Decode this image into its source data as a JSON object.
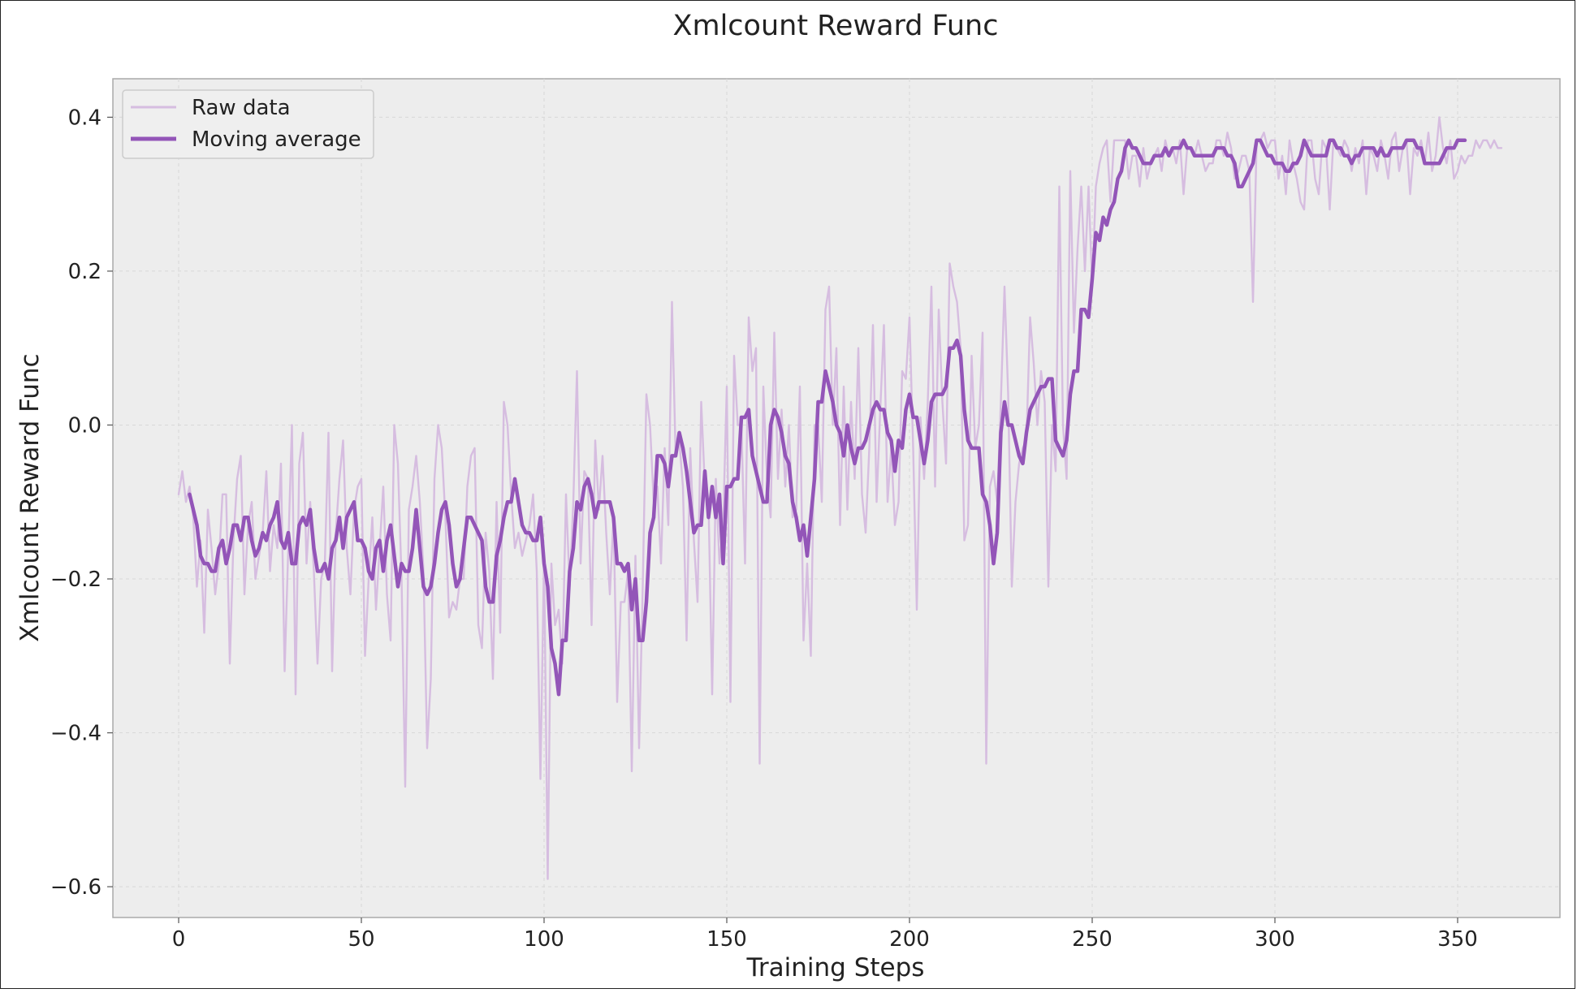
{
  "colors": {
    "background": "#ffffff",
    "plot_background": "#ededed",
    "grid": "#d8d8d8",
    "raw": "#d6bde0",
    "moving_average": "#9355b8",
    "axis": "#aaaaaa",
    "text": "#222222"
  },
  "chart_data": {
    "type": "line",
    "title": "Xmlcount Reward Func",
    "xlabel": "Training Steps",
    "ylabel": "Xmlcount Reward Func",
    "xlim": [
      -18,
      378
    ],
    "ylim": [
      -0.64,
      0.45
    ],
    "xticks": [
      0,
      50,
      100,
      150,
      200,
      250,
      300,
      350
    ],
    "yticks": [
      -0.6,
      -0.4,
      -0.2,
      0.0,
      0.2,
      0.4
    ],
    "ytick_labels": [
      "−0.6",
      "−0.4",
      "−0.2",
      "0.0",
      "0.2",
      "0.4"
    ],
    "grid": true,
    "legend_position": "top-left",
    "series": [
      {
        "name": "Raw data",
        "style": "raw",
        "x_start": 0,
        "values": [
          -0.09,
          -0.06,
          -0.1,
          -0.08,
          -0.12,
          -0.21,
          -0.15,
          -0.27,
          -0.11,
          -0.16,
          -0.22,
          -0.18,
          -0.09,
          -0.09,
          -0.31,
          -0.15,
          -0.07,
          -0.04,
          -0.22,
          -0.13,
          -0.1,
          -0.2,
          -0.17,
          -0.14,
          -0.06,
          -0.19,
          -0.13,
          -0.16,
          -0.05,
          -0.32,
          -0.16,
          0.0,
          -0.35,
          -0.05,
          -0.01,
          -0.18,
          -0.1,
          -0.19,
          -0.31,
          -0.2,
          -0.18,
          -0.01,
          -0.32,
          -0.14,
          -0.07,
          -0.02,
          -0.16,
          -0.22,
          -0.11,
          -0.08,
          -0.07,
          -0.3,
          -0.2,
          -0.12,
          -0.24,
          -0.16,
          -0.08,
          -0.22,
          -0.28,
          0.0,
          -0.05,
          -0.2,
          -0.47,
          -0.11,
          -0.08,
          -0.04,
          -0.1,
          -0.19,
          -0.42,
          -0.33,
          -0.07,
          0.0,
          -0.03,
          -0.12,
          -0.25,
          -0.23,
          -0.24,
          -0.2,
          -0.2,
          -0.08,
          -0.04,
          -0.03,
          -0.26,
          -0.29,
          -0.14,
          -0.19,
          -0.33,
          -0.1,
          -0.27,
          0.03,
          0.0,
          -0.09,
          -0.16,
          -0.14,
          -0.17,
          -0.15,
          -0.13,
          -0.09,
          -0.19,
          -0.46,
          -0.17,
          -0.59,
          -0.18,
          -0.26,
          -0.24,
          -0.31,
          -0.09,
          -0.21,
          -0.1,
          0.07,
          -0.18,
          -0.06,
          -0.07,
          -0.26,
          -0.02,
          -0.11,
          -0.04,
          -0.14,
          -0.22,
          -0.12,
          -0.36,
          -0.23,
          -0.23,
          -0.19,
          -0.45,
          -0.17,
          -0.42,
          -0.21,
          0.04,
          0.0,
          -0.1,
          -0.08,
          -0.18,
          -0.03,
          -0.13,
          0.16,
          -0.04,
          -0.02,
          -0.08,
          -0.28,
          -0.03,
          -0.15,
          -0.23,
          0.03,
          -0.08,
          -0.1,
          -0.35,
          -0.07,
          -0.18,
          -0.13,
          0.05,
          -0.36,
          0.09,
          0.0,
          0.0,
          -0.18,
          0.14,
          0.07,
          0.1,
          -0.44,
          0.05,
          -0.07,
          -0.12,
          0.12,
          -0.07,
          0.02,
          -0.08,
          0.0,
          -0.12,
          -0.11,
          0.05,
          -0.28,
          -0.18,
          -0.3,
          0.0,
          0.0,
          -0.1,
          0.15,
          0.18,
          0.0,
          0.1,
          -0.13,
          0.05,
          -0.11,
          0.03,
          -0.07,
          0.1,
          -0.09,
          -0.14,
          -0.03,
          0.13,
          -0.1,
          0.02,
          0.13,
          -0.1,
          -0.03,
          -0.13,
          -0.1,
          0.07,
          0.06,
          0.14,
          -0.03,
          -0.24,
          0.01,
          -0.07,
          0.03,
          0.18,
          -0.08,
          0.15,
          0.03,
          -0.05,
          0.21,
          0.18,
          0.16,
          0.1,
          -0.15,
          -0.13,
          0.09,
          -0.03,
          0.0,
          0.12,
          -0.44,
          -0.08,
          -0.06,
          -0.1,
          0.03,
          0.18,
          0.04,
          -0.21,
          -0.1,
          -0.05,
          -0.03,
          -0.02,
          0.14,
          0.08,
          0.0,
          0.07,
          0.03,
          -0.21,
          0.0,
          -0.06,
          0.31,
          0.0,
          -0.07,
          0.33,
          0.12,
          0.23,
          0.31,
          0.2,
          0.31,
          0.18,
          0.31,
          0.34,
          0.36,
          0.37,
          0.29,
          0.37,
          0.37,
          0.37,
          0.37,
          0.32,
          0.35,
          0.35,
          0.31,
          0.36,
          0.32,
          0.34,
          0.35,
          0.36,
          0.33,
          0.37,
          0.35,
          0.36,
          0.34,
          0.37,
          0.3,
          0.36,
          0.36,
          0.35,
          0.37,
          0.35,
          0.33,
          0.34,
          0.34,
          0.37,
          0.37,
          0.35,
          0.38,
          0.36,
          0.32,
          0.33,
          0.35,
          0.35,
          0.33,
          0.16,
          0.37,
          0.37,
          0.38,
          0.36,
          0.37,
          0.37,
          0.32,
          0.35,
          0.3,
          0.37,
          0.34,
          0.32,
          0.29,
          0.28,
          0.37,
          0.37,
          0.32,
          0.3,
          0.37,
          0.36,
          0.28,
          0.37,
          0.36,
          0.35,
          0.37,
          0.36,
          0.33,
          0.36,
          0.34,
          0.37,
          0.3,
          0.36,
          0.35,
          0.33,
          0.37,
          0.35,
          0.32,
          0.37,
          0.38,
          0.33,
          0.36,
          0.37,
          0.3,
          0.36,
          0.35,
          0.37,
          0.34,
          0.38,
          0.33,
          0.35,
          0.4,
          0.36,
          0.34,
          0.37,
          0.32,
          0.33,
          0.35,
          0.34,
          0.35,
          0.35,
          0.37,
          0.36,
          0.37,
          0.37,
          0.36,
          0.37,
          0.36,
          0.36
        ]
      },
      {
        "name": "Moving average",
        "style": "ma",
        "x_start": 3,
        "values": [
          -0.09,
          -0.11,
          -0.13,
          -0.17,
          -0.18,
          -0.18,
          -0.19,
          -0.19,
          -0.16,
          -0.15,
          -0.18,
          -0.16,
          -0.13,
          -0.13,
          -0.15,
          -0.12,
          -0.12,
          -0.15,
          -0.17,
          -0.16,
          -0.14,
          -0.15,
          -0.13,
          -0.12,
          -0.1,
          -0.15,
          -0.16,
          -0.14,
          -0.18,
          -0.18,
          -0.13,
          -0.12,
          -0.13,
          -0.11,
          -0.16,
          -0.19,
          -0.19,
          -0.18,
          -0.2,
          -0.16,
          -0.15,
          -0.12,
          -0.16,
          -0.12,
          -0.11,
          -0.1,
          -0.15,
          -0.15,
          -0.16,
          -0.19,
          -0.2,
          -0.16,
          -0.15,
          -0.19,
          -0.15,
          -0.13,
          -0.17,
          -0.21,
          -0.18,
          -0.19,
          -0.19,
          -0.16,
          -0.11,
          -0.16,
          -0.21,
          -0.22,
          -0.21,
          -0.18,
          -0.14,
          -0.11,
          -0.1,
          -0.13,
          -0.18,
          -0.21,
          -0.2,
          -0.16,
          -0.12,
          -0.12,
          -0.13,
          -0.14,
          -0.15,
          -0.21,
          -0.23,
          -0.23,
          -0.17,
          -0.15,
          -0.12,
          -0.1,
          -0.1,
          -0.07,
          -0.1,
          -0.13,
          -0.14,
          -0.14,
          -0.15,
          -0.15,
          -0.12,
          -0.18,
          -0.21,
          -0.29,
          -0.31,
          -0.35,
          -0.28,
          -0.28,
          -0.19,
          -0.16,
          -0.1,
          -0.11,
          -0.08,
          -0.07,
          -0.09,
          -0.12,
          -0.1,
          -0.1,
          -0.1,
          -0.1,
          -0.12,
          -0.18,
          -0.18,
          -0.19,
          -0.18,
          -0.24,
          -0.2,
          -0.28,
          -0.28,
          -0.23,
          -0.14,
          -0.12,
          -0.04,
          -0.04,
          -0.05,
          -0.08,
          -0.04,
          -0.04,
          -0.01,
          -0.03,
          -0.06,
          -0.1,
          -0.14,
          -0.13,
          -0.13,
          -0.06,
          -0.12,
          -0.08,
          -0.12,
          -0.09,
          -0.18,
          -0.08,
          -0.08,
          -0.07,
          -0.07,
          0.01,
          0.01,
          0.02,
          -0.04,
          -0.06,
          -0.08,
          -0.1,
          -0.1,
          0.0,
          0.02,
          0.01,
          -0.01,
          -0.04,
          -0.05,
          -0.1,
          -0.12,
          -0.15,
          -0.13,
          -0.17,
          -0.12,
          -0.07,
          0.03,
          0.03,
          0.07,
          0.05,
          0.03,
          0.0,
          -0.01,
          -0.04,
          0.0,
          -0.03,
          -0.05,
          -0.03,
          -0.03,
          -0.02,
          0.0,
          0.02,
          0.03,
          0.02,
          0.02,
          -0.01,
          -0.02,
          -0.06,
          -0.02,
          -0.03,
          0.02,
          0.04,
          0.01,
          0.01,
          -0.02,
          -0.05,
          -0.02,
          0.03,
          0.04,
          0.04,
          0.04,
          0.05,
          0.1,
          0.1,
          0.11,
          0.09,
          0.02,
          -0.02,
          -0.03,
          -0.03,
          -0.03,
          -0.09,
          -0.1,
          -0.13,
          -0.18,
          -0.14,
          -0.01,
          0.03,
          0.0,
          0.0,
          -0.02,
          -0.04,
          -0.05,
          -0.01,
          0.02,
          0.03,
          0.04,
          0.05,
          0.05,
          0.06,
          0.06,
          -0.02,
          -0.03,
          -0.04,
          -0.02,
          0.04,
          0.07,
          0.07,
          0.15,
          0.15,
          0.14,
          0.19,
          0.25,
          0.24,
          0.27,
          0.26,
          0.28,
          0.29,
          0.32,
          0.33,
          0.36,
          0.37,
          0.36,
          0.36,
          0.35,
          0.34,
          0.34,
          0.34,
          0.35,
          0.35,
          0.35,
          0.36,
          0.35,
          0.36,
          0.36,
          0.36,
          0.37,
          0.36,
          0.36,
          0.35,
          0.35,
          0.35,
          0.35,
          0.35,
          0.35,
          0.36,
          0.36,
          0.36,
          0.35,
          0.35,
          0.34,
          0.31,
          0.31,
          0.32,
          0.33,
          0.34,
          0.37,
          0.37,
          0.36,
          0.35,
          0.35,
          0.34,
          0.34,
          0.34,
          0.33,
          0.33,
          0.34,
          0.34,
          0.35,
          0.37,
          0.36,
          0.35,
          0.35,
          0.35,
          0.35,
          0.35,
          0.37,
          0.37,
          0.36,
          0.36,
          0.35,
          0.35,
          0.34,
          0.35,
          0.35,
          0.36,
          0.36,
          0.36,
          0.36,
          0.35,
          0.36,
          0.35,
          0.35,
          0.36,
          0.36,
          0.36,
          0.36,
          0.37,
          0.37,
          0.37,
          0.36,
          0.36,
          0.34,
          0.34,
          0.34,
          0.34,
          0.34,
          0.35,
          0.36,
          0.36,
          0.36,
          0.37,
          0.37,
          0.37
        ]
      }
    ]
  }
}
